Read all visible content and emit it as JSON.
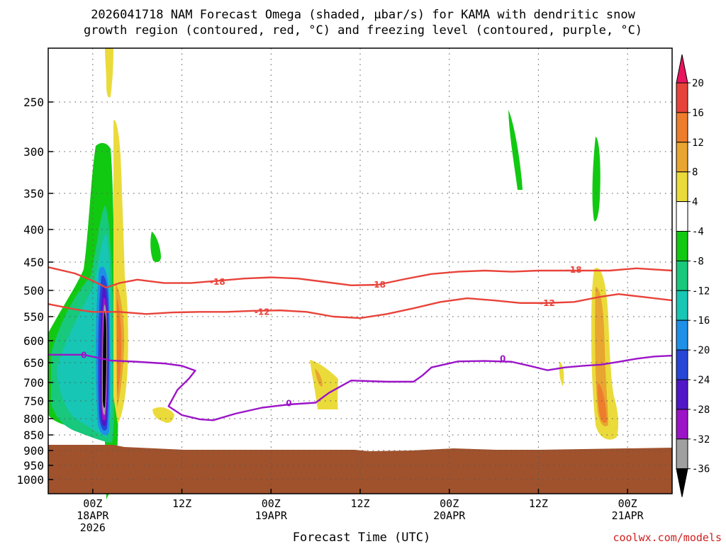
{
  "chart_data": {
    "type": "contour",
    "title_lines": [
      "2026041718 NAM Forecast Omega (shaded, μbar/s) for KAMA with dendritic snow",
      "growth region (contoured, red, °C) and freezing level (contoured, purple, °C)"
    ],
    "xlabel": "Forecast Time (UTC)",
    "credit": "coolwx.com/models",
    "x_range_hours": [
      -5,
      65
    ],
    "x_ticks": [
      {
        "hour": 0,
        "lines": [
          "00Z",
          "18APR",
          "2026"
        ]
      },
      {
        "hour": 10,
        "lines": [
          "12Z"
        ]
      },
      {
        "hour": 20,
        "lines": [
          "00Z",
          "19APR"
        ]
      },
      {
        "hour": 30,
        "lines": [
          "12Z"
        ]
      },
      {
        "hour": 40,
        "lines": [
          "00Z",
          "20APR"
        ]
      },
      {
        "hour": 50,
        "lines": [
          "12Z"
        ]
      },
      {
        "hour": 60,
        "lines": [
          "00Z",
          "21APR"
        ]
      }
    ],
    "y_scale": "pressure (hPa), inverted",
    "y_ticks": [
      250,
      300,
      350,
      400,
      450,
      500,
      550,
      600,
      650,
      700,
      750,
      800,
      850,
      900,
      950,
      1000
    ],
    "colorbar": {
      "labels": [
        "20",
        "16",
        "12",
        "8",
        "4",
        "-4",
        "-8",
        "-12",
        "-16",
        "-20",
        "-24",
        "-28",
        "-32",
        "-36"
      ],
      "colors": [
        "#e8155e",
        "#e8433a",
        "#ed7d2d",
        "#e8a530",
        "#eadb3b",
        "#ffffff",
        "#12c912",
        "#18c87c",
        "#17c6b4",
        "#1e90e8",
        "#2646d8",
        "#5116c8",
        "#9c14c8",
        "#a0a0a0",
        "#000000"
      ]
    },
    "contours": [
      {
        "label": "-18",
        "color": "#e8433a",
        "points": [
          [
            -5,
            459
          ],
          [
            -2,
            470
          ],
          [
            0,
            483
          ],
          [
            1.5,
            495
          ],
          [
            3,
            487
          ],
          [
            5,
            481
          ],
          [
            8,
            487
          ],
          [
            11,
            487
          ],
          [
            14,
            483
          ],
          [
            17,
            479
          ],
          [
            20,
            477
          ],
          [
            23,
            479
          ],
          [
            26,
            485
          ],
          [
            29,
            491
          ],
          [
            32,
            490
          ],
          [
            35,
            480
          ],
          [
            38,
            471
          ],
          [
            41,
            467
          ],
          [
            44,
            465
          ],
          [
            47,
            467
          ],
          [
            50,
            465
          ],
          [
            53,
            465
          ],
          [
            56,
            465
          ],
          [
            58,
            465
          ],
          [
            61,
            461
          ],
          [
            63,
            463
          ],
          [
            65,
            465
          ]
        ],
        "label_at": [
          [
            14,
            485
          ],
          [
            32,
            490
          ],
          [
            54,
            464
          ]
        ]
      },
      {
        "label": "-12",
        "color": "#e8433a",
        "points": [
          [
            -5,
            526
          ],
          [
            -2,
            536
          ],
          [
            0,
            541
          ],
          [
            3,
            541
          ],
          [
            6,
            545
          ],
          [
            9,
            542
          ],
          [
            12,
            541
          ],
          [
            15,
            541
          ],
          [
            18,
            539
          ],
          [
            21,
            538
          ],
          [
            24,
            541
          ],
          [
            27,
            550
          ],
          [
            30,
            553
          ],
          [
            33,
            545
          ],
          [
            36,
            534
          ],
          [
            39,
            522
          ],
          [
            42,
            515
          ],
          [
            45,
            519
          ],
          [
            48,
            524
          ],
          [
            51,
            524
          ],
          [
            54,
            522
          ],
          [
            57,
            512
          ],
          [
            59,
            507
          ],
          [
            62,
            513
          ],
          [
            65,
            519
          ]
        ],
        "label_at": [
          [
            19,
            541
          ],
          [
            51,
            524
          ]
        ]
      },
      {
        "label": "0",
        "color": "#9c14c8",
        "points": [
          [
            -5,
            632
          ],
          [
            -1,
            632
          ],
          [
            2,
            645
          ],
          [
            5,
            648
          ],
          [
            8,
            652
          ],
          [
            10,
            658
          ],
          [
            11.5,
            670
          ],
          [
            10.8,
            690
          ],
          [
            9.5,
            720
          ],
          [
            8.5,
            765
          ],
          [
            10,
            790
          ],
          [
            12,
            802
          ],
          [
            13.5,
            805
          ],
          [
            16,
            786
          ],
          [
            19,
            769
          ],
          [
            22,
            760
          ],
          [
            25,
            755
          ],
          [
            26.5,
            728
          ],
          [
            29,
            695
          ],
          [
            33,
            698
          ],
          [
            36,
            698
          ],
          [
            37,
            682
          ],
          [
            38,
            662
          ],
          [
            41,
            647
          ],
          [
            44,
            646
          ],
          [
            47,
            648
          ],
          [
            49,
            658
          ],
          [
            51,
            669
          ],
          [
            53,
            662
          ],
          [
            55,
            658
          ],
          [
            57,
            655
          ],
          [
            59,
            648
          ],
          [
            61,
            641
          ],
          [
            63,
            636
          ],
          [
            65,
            634
          ]
        ],
        "label_at": [
          [
            -1,
            633
          ],
          [
            22,
            757
          ],
          [
            46,
            641
          ]
        ]
      }
    ]
  }
}
